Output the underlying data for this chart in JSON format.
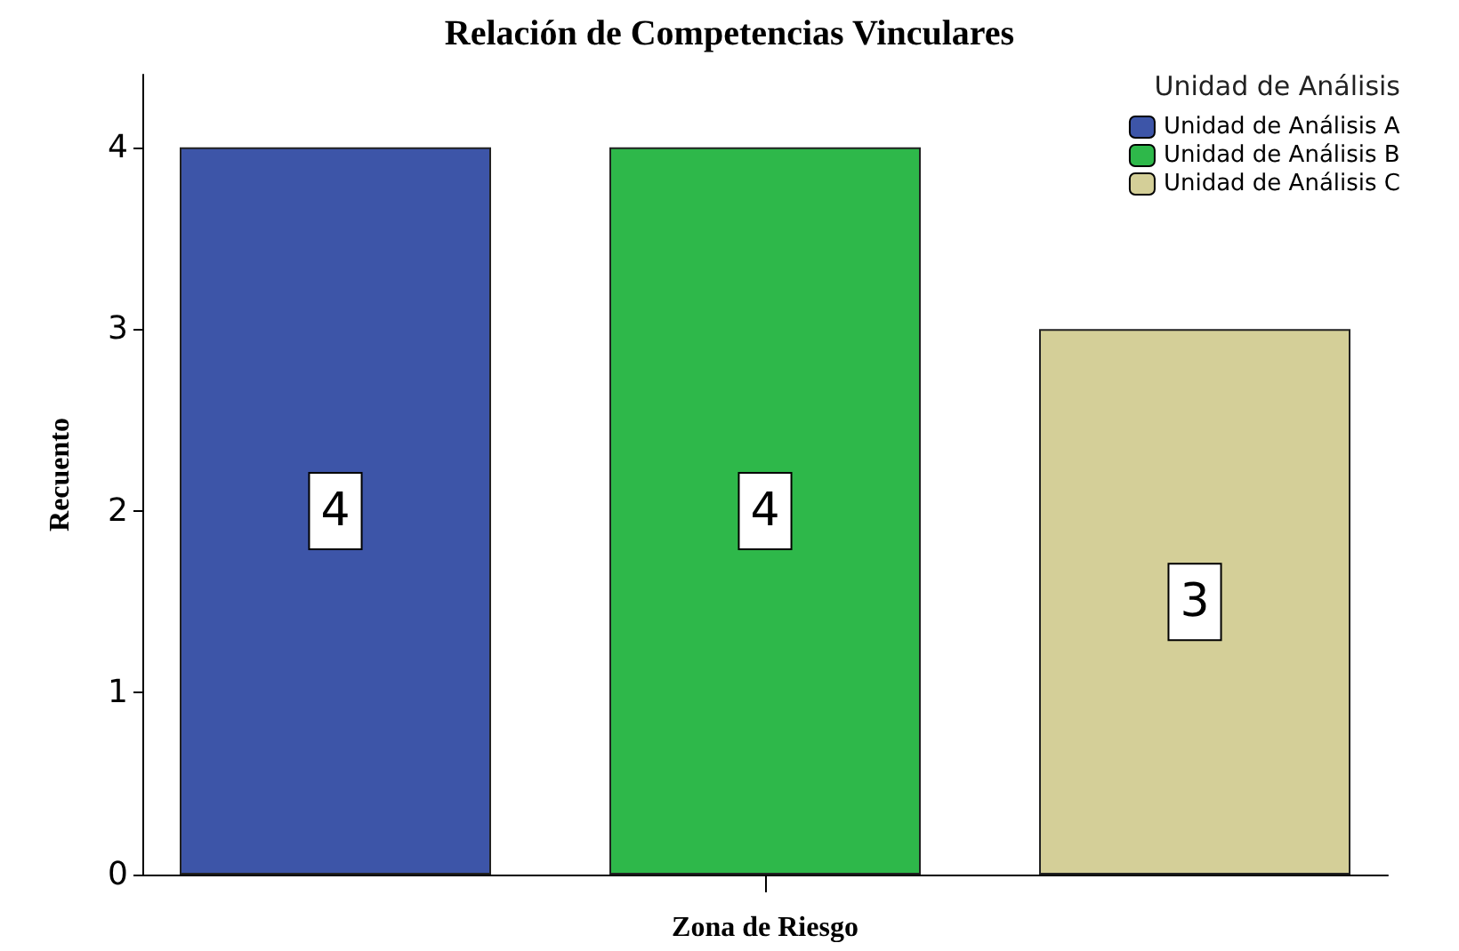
{
  "chart_data": {
    "type": "bar",
    "title": "Relación de Competencias Vinculares",
    "xlabel": "Zona de Riesgo",
    "ylabel": "Recuento",
    "legend_title": "Unidad de Análisis",
    "categories": [
      null
    ],
    "series": [
      {
        "name": "Unidad de Análisis A",
        "color": "#3d55a8",
        "values": [
          4
        ]
      },
      {
        "name": "Unidad de Análisis B",
        "color": "#2eb84a",
        "values": [
          4
        ]
      },
      {
        "name": "Unidad de Análisis C",
        "color": "#d4cf98",
        "values": [
          3
        ]
      }
    ],
    "ylim": [
      0,
      4.4
    ],
    "yticks": [
      0,
      1,
      2,
      3,
      4
    ],
    "grid": false,
    "legend": "top right",
    "data_labels": true
  }
}
